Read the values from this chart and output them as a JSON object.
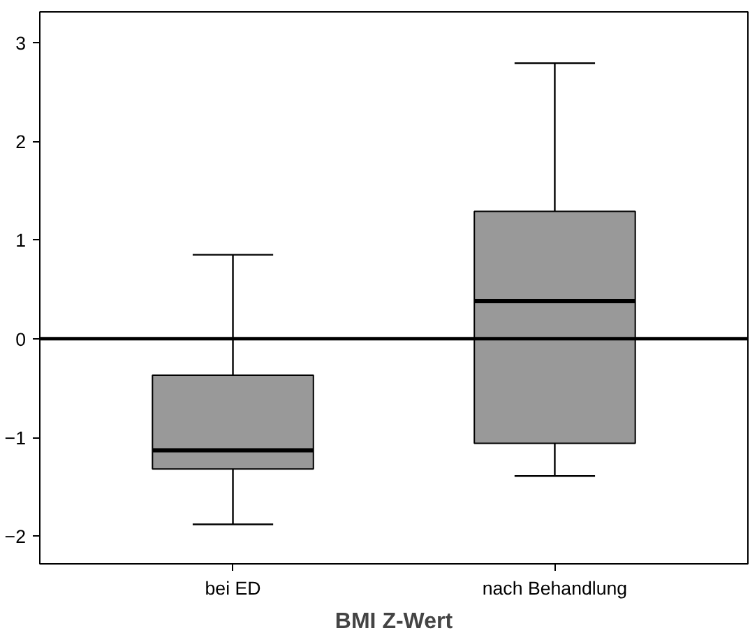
{
  "chart_data": {
    "type": "box",
    "xlabel": "BMI Z-Wert",
    "categories": [
      "bei ED",
      "nach Behandlung"
    ],
    "color": "#999999",
    "boxes": [
      {
        "low": -1.88,
        "q1": -1.32,
        "median": -1.13,
        "q3": -0.37,
        "high": 0.85
      },
      {
        "low": -1.39,
        "q1": -1.06,
        "median": 0.38,
        "q3": 1.29,
        "high": 2.79
      }
    ],
    "ylim": [
      -2.28,
      3.31
    ],
    "yticks": [
      -2,
      -1,
      0,
      1,
      2,
      3
    ],
    "grid": false,
    "ref_lines": [
      {
        "axis": "y",
        "value": 0,
        "color": "#000000"
      }
    ]
  }
}
